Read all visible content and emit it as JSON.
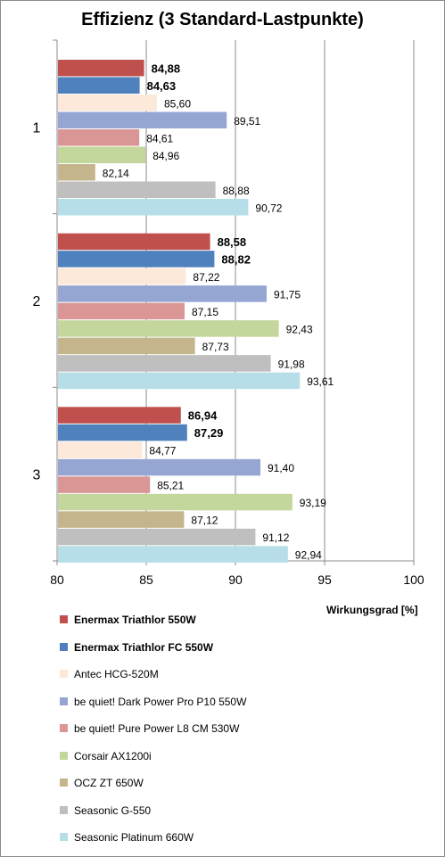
{
  "chart_data": {
    "type": "bar",
    "orientation": "horizontal",
    "title": "Effizienz (3 Standard-Lastpunkte)",
    "xlabel": "Wirkungsgrad [%]",
    "ylabel": "",
    "xlim": [
      80,
      100
    ],
    "xticks": [
      "80",
      "85",
      "90",
      "95",
      "100"
    ],
    "categories": [
      "1",
      "2",
      "3"
    ],
    "grid": true,
    "legend_position": "bottom",
    "series": [
      {
        "name": "Enermax Triathlor 550W",
        "color": "#c0504d",
        "bold": true,
        "values": [
          84.88,
          88.58,
          86.94
        ],
        "labels": [
          "84,88",
          "88,58",
          "86,94"
        ]
      },
      {
        "name": "Enermax Triathlor FC 550W",
        "color": "#4f81bd",
        "bold": true,
        "values": [
          84.63,
          88.82,
          87.29
        ],
        "labels": [
          "84,63",
          "88,82",
          "87,29"
        ]
      },
      {
        "name": "Antec HCG-520M",
        "color": "#fde9d9",
        "bold": false,
        "values": [
          85.6,
          87.22,
          84.77
        ],
        "labels": [
          "85,60",
          "87,22",
          "84,77"
        ]
      },
      {
        "name": "be quiet! Dark Power Pro P10 550W",
        "color": "#95a6d2",
        "bold": false,
        "values": [
          89.51,
          91.75,
          91.4
        ],
        "labels": [
          "89,51",
          "91,75",
          "91,40"
        ]
      },
      {
        "name": "be quiet! Pure Power L8 CM 530W",
        "color": "#d99694",
        "bold": false,
        "values": [
          84.61,
          87.15,
          85.21
        ],
        "labels": [
          "84,61",
          "87,15",
          "85,21"
        ]
      },
      {
        "name": "Corsair AX1200i",
        "color": "#c3d69b",
        "bold": false,
        "values": [
          84.96,
          92.43,
          93.19
        ],
        "labels": [
          "84,96",
          "92,43",
          "93,19"
        ]
      },
      {
        "name": "OCZ ZT 650W",
        "color": "#c4b58c",
        "bold": false,
        "values": [
          82.14,
          87.73,
          87.12
        ],
        "labels": [
          "82,14",
          "87,73",
          "87,12"
        ]
      },
      {
        "name": "Seasonic G-550",
        "color": "#bfbfbf",
        "bold": false,
        "values": [
          88.88,
          91.98,
          91.12
        ],
        "labels": [
          "88,88",
          "91,98",
          "91,12"
        ]
      },
      {
        "name": "Seasonic Platinum 660W",
        "color": "#b7dee8",
        "bold": false,
        "values": [
          90.72,
          93.61,
          92.94
        ],
        "labels": [
          "90,72",
          "93,61",
          "92,94"
        ]
      }
    ]
  }
}
